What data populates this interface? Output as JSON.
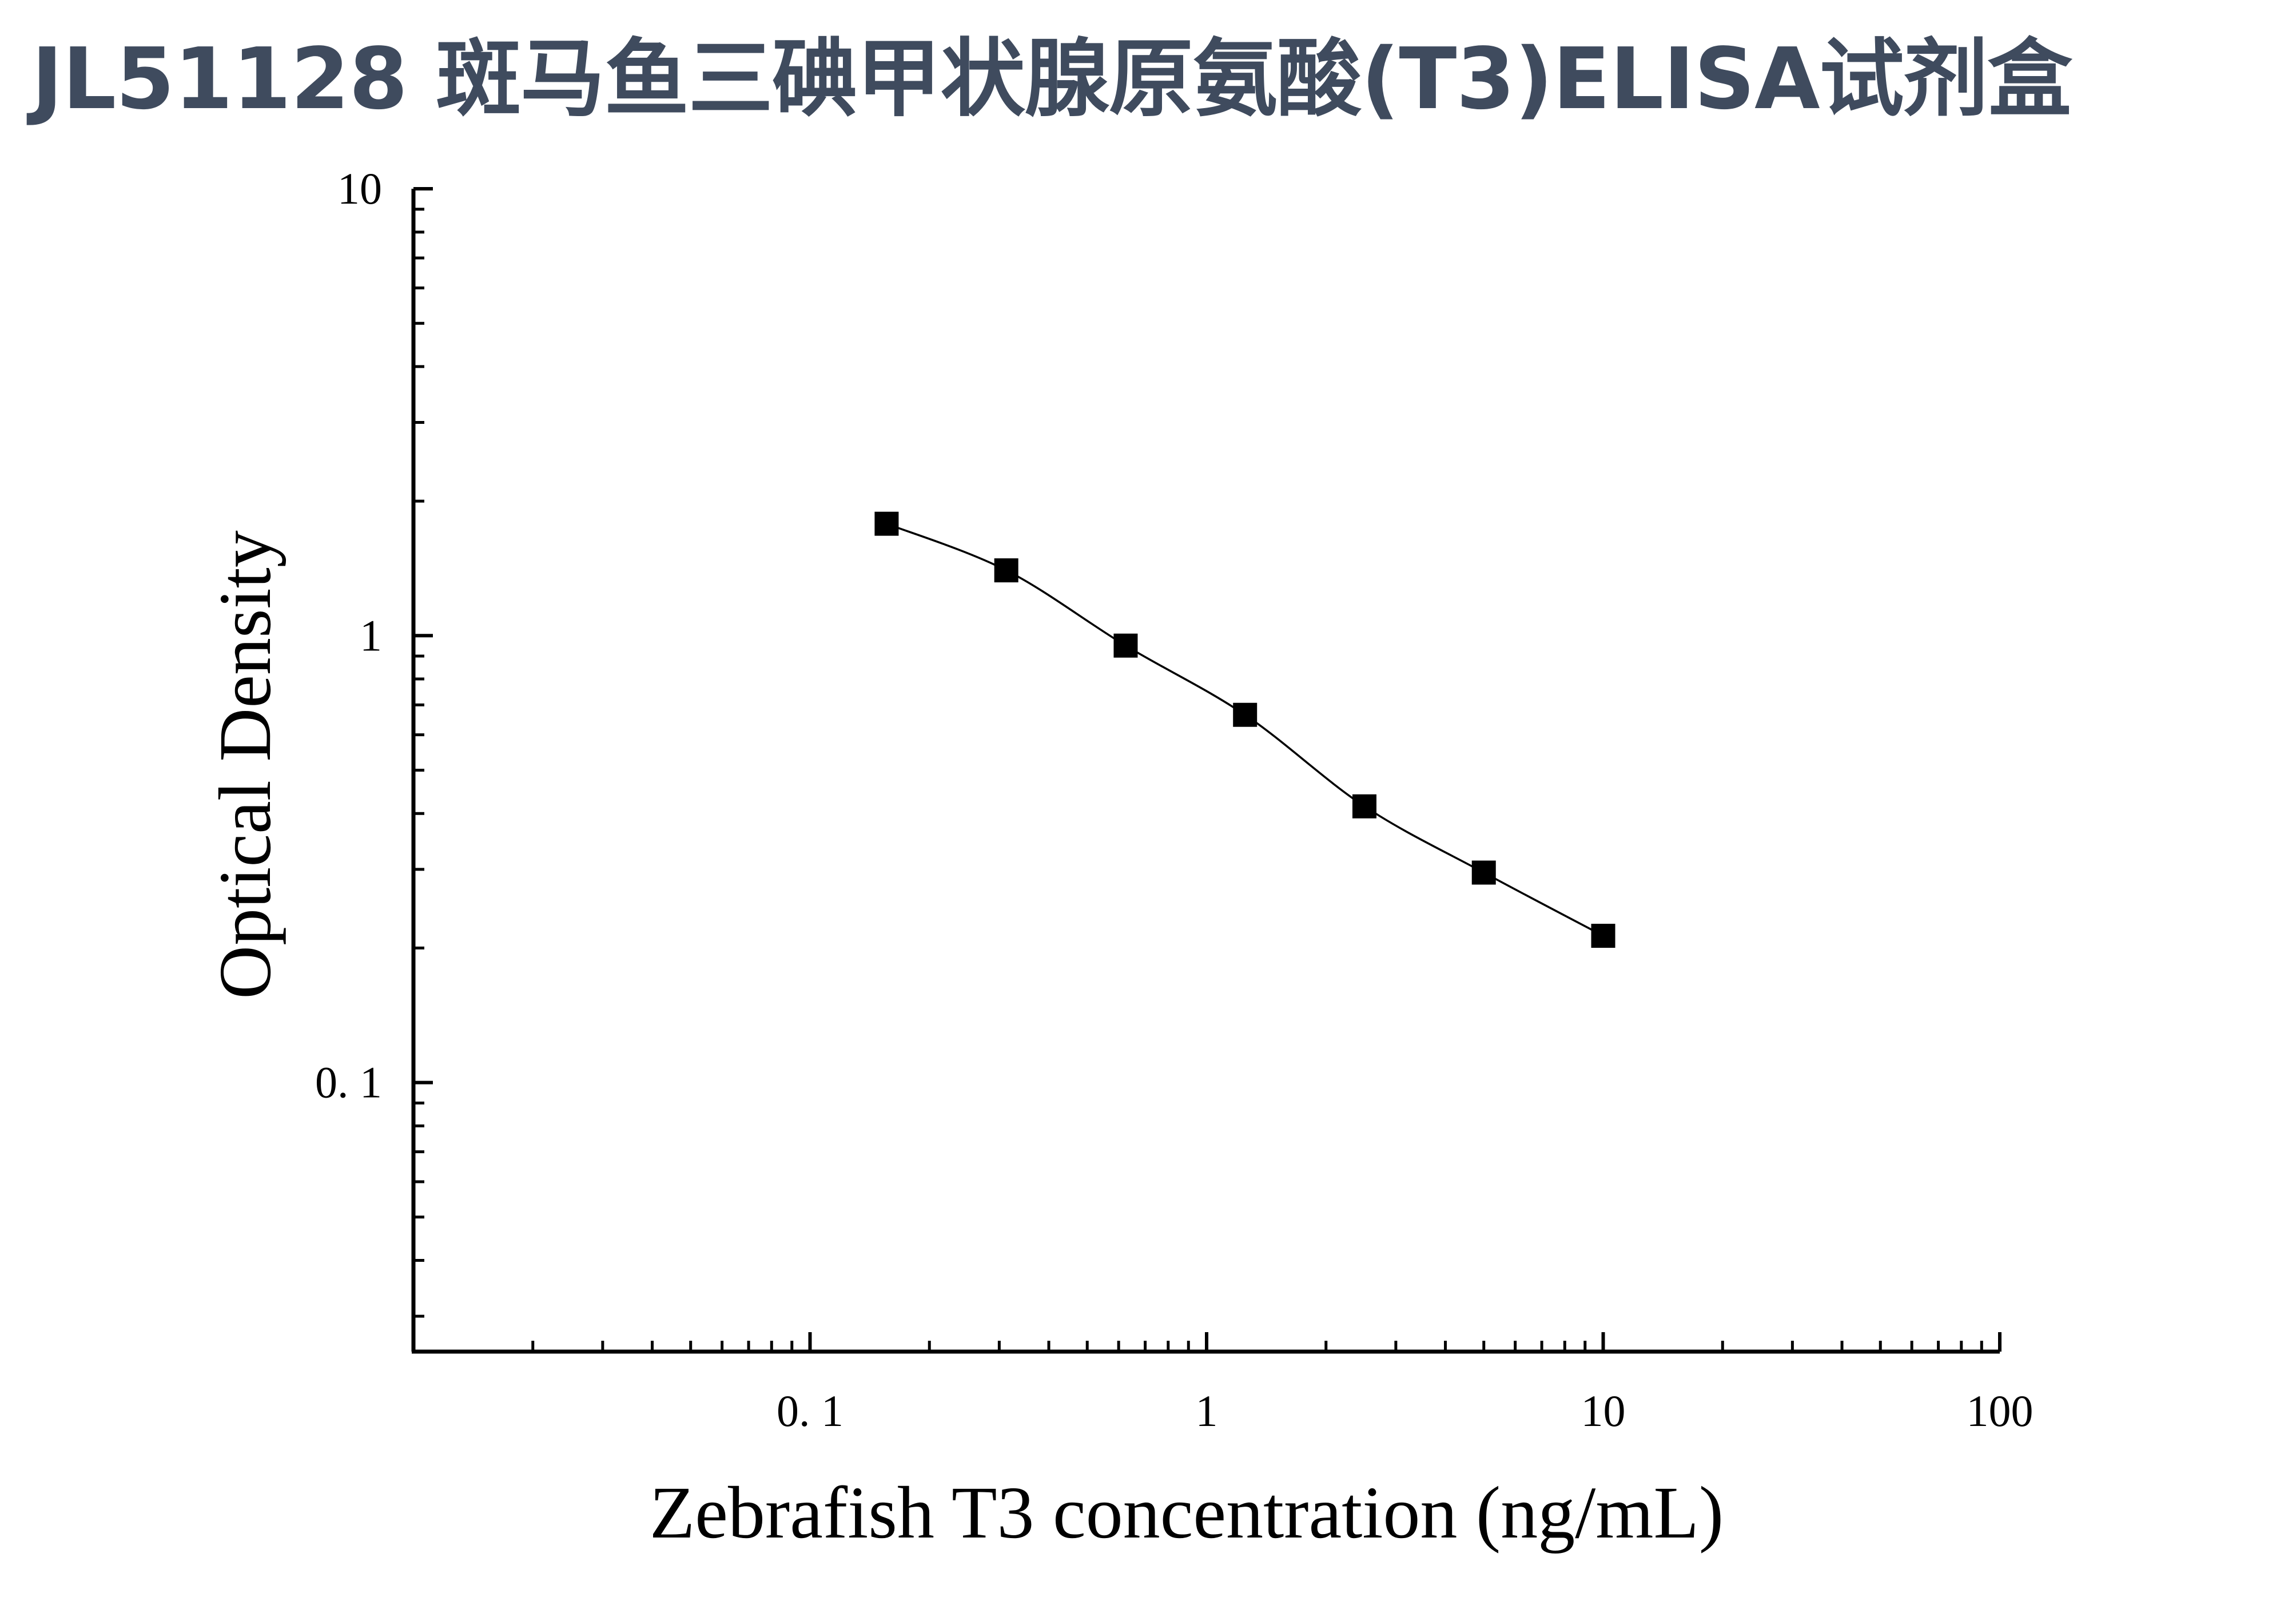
{
  "title": "JL51128 斑马鱼三碘甲状腺原氨酸(T3)ELISA试剂盒",
  "chart_data": {
    "type": "scatter",
    "xlabel": "Zebrafish T3 concentration (ng/mL)",
    "ylabel": "Optical Density",
    "x_scale": "log",
    "y_scale": "log",
    "xlim": [
      0.01,
      100
    ],
    "ylim": [
      0.025,
      10
    ],
    "x_ticks": [
      {
        "value": 0.1,
        "label": "0. 1"
      },
      {
        "value": 1,
        "label": "1"
      },
      {
        "value": 10,
        "label": "10"
      },
      {
        "value": 100,
        "label": "100"
      }
    ],
    "y_ticks": [
      {
        "value": 0.1,
        "label": "0. 1"
      },
      {
        "value": 1,
        "label": "1"
      },
      {
        "value": 10,
        "label": "10"
      }
    ],
    "grid": false,
    "fit_line": true,
    "marker": "square",
    "color": "#000000",
    "series": [
      {
        "x": [
          0.156,
          0.3125,
          0.625,
          1.25,
          2.5,
          5,
          10
        ],
        "y": [
          1.78,
          1.4,
          0.95,
          0.665,
          0.415,
          0.295,
          0.213
        ]
      }
    ]
  }
}
